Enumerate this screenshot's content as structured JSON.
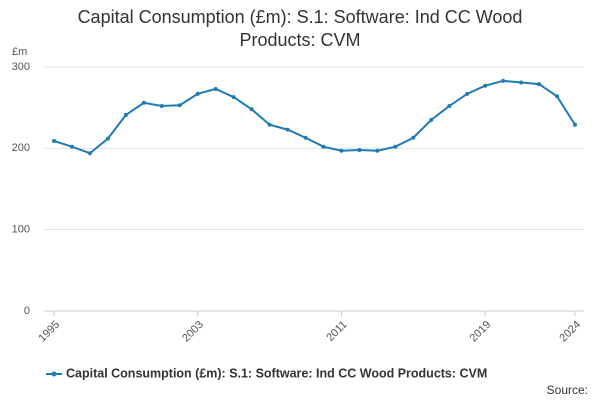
{
  "chart_data": {
    "type": "line",
    "title": "Capital Consumption (£m): S.1: Software: Ind CC Wood Products: CVM",
    "y_label": "£m",
    "source": "Source:",
    "x": [
      1995,
      1996,
      1997,
      1998,
      1999,
      2000,
      2001,
      2002,
      2003,
      2004,
      2005,
      2006,
      2007,
      2008,
      2009,
      2010,
      2011,
      2012,
      2013,
      2014,
      2015,
      2016,
      2017,
      2018,
      2019,
      2020,
      2021,
      2022,
      2023,
      2024
    ],
    "series": [
      {
        "name": "Capital Consumption (£m): S.1: Software: Ind CC Wood Products: CVM",
        "color": "#1f7bb6",
        "values": [
          209,
          202,
          194,
          212,
          241,
          256,
          252,
          253,
          267,
          273,
          263,
          248,
          229,
          223,
          213,
          202,
          197,
          198,
          197,
          202,
          213,
          235,
          252,
          267,
          277,
          283,
          281,
          279,
          264,
          229
        ]
      }
    ],
    "xlim": [
      1995,
      2024
    ],
    "xticks": [
      1995,
      2003,
      2011,
      2019,
      2024
    ],
    "ylim": [
      0,
      300
    ],
    "yticks": [
      0,
      100,
      200,
      300
    ],
    "grid": true
  }
}
